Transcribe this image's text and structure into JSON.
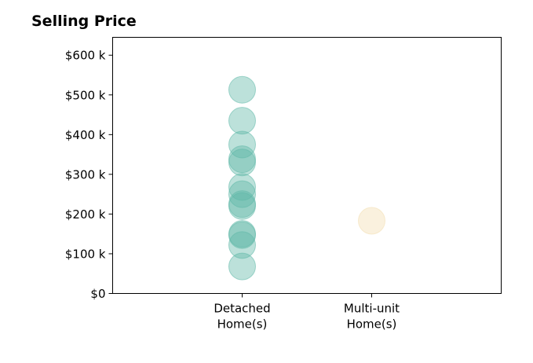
{
  "chart_data": {
    "type": "scatter",
    "title": "Selling Price",
    "xlabel": "",
    "ylabel": "",
    "categories": [
      [
        "Detached",
        "Home(s)"
      ],
      [
        "Multi-unit",
        "Home(s)"
      ]
    ],
    "yticks": [
      0,
      100000,
      200000,
      300000,
      400000,
      500000,
      600000
    ],
    "ytick_labels": [
      "$0",
      "$100 k",
      "$200 k",
      "$300 k",
      "$400 k",
      "$500 k",
      "$600 k"
    ],
    "ylim": [
      0,
      645000
    ],
    "xlim": [
      -1,
      2
    ],
    "grid": false,
    "series": [
      {
        "category_index": 0,
        "color": "#5fb8a8",
        "values": [
          513000,
          435000,
          375000,
          338000,
          330000,
          268000,
          250000,
          225000,
          220000,
          150000,
          147000,
          122000,
          68000
        ]
      },
      {
        "category_index": 1,
        "color": "#f3deb0",
        "values": [
          183000
        ]
      }
    ]
  }
}
